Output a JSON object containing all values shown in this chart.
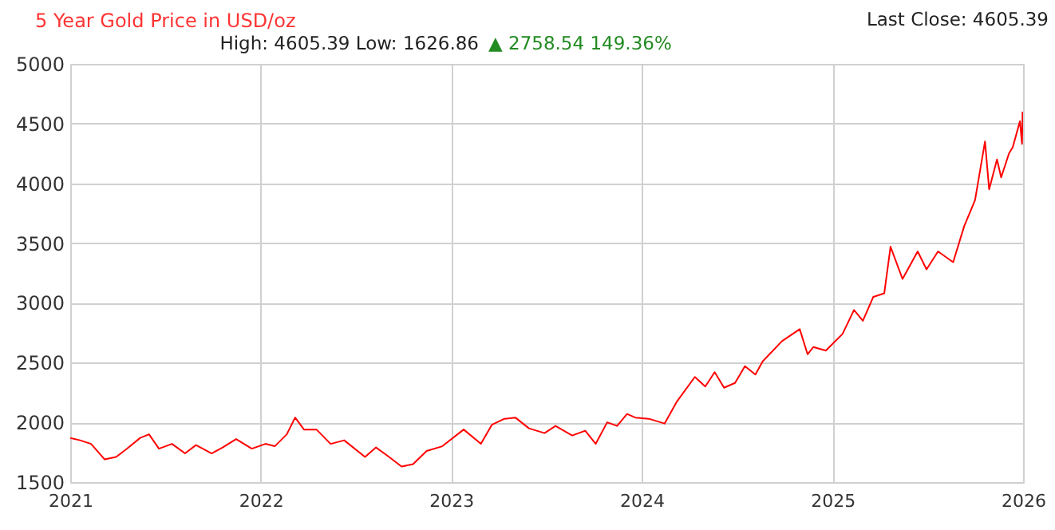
{
  "chart_data": {
    "type": "line",
    "title": "5 Year Gold Price in USD/oz",
    "subtitle": "High: 4605.39 Low: 1626.86",
    "annotations": [
      "▲ 2758.54 149.36%",
      "Last Close: 4605.39"
    ],
    "x": [
      "2021-01-01",
      "2021-01-20",
      "2021-02-10",
      "2021-03-08",
      "2021-03-30",
      "2021-04-20",
      "2021-05-15",
      "2021-06-01",
      "2021-06-20",
      "2021-07-15",
      "2021-08-09",
      "2021-08-30",
      "2021-09-29",
      "2021-10-20",
      "2021-11-15",
      "2021-12-15",
      "2022-01-10",
      "2022-01-28",
      "2022-02-20",
      "2022-03-08",
      "2022-03-25",
      "2022-04-18",
      "2022-05-15",
      "2022-06-10",
      "2022-07-20",
      "2022-08-10",
      "2022-09-01",
      "2022-09-28",
      "2022-10-20",
      "2022-11-15",
      "2022-12-15",
      "2023-01-25",
      "2023-02-27",
      "2023-03-20",
      "2023-04-13",
      "2023-05-04",
      "2023-05-30",
      "2023-06-29",
      "2023-07-20",
      "2023-08-21",
      "2023-09-15",
      "2023-10-05",
      "2023-10-27",
      "2023-11-15",
      "2023-12-04",
      "2023-12-20",
      "2024-01-15",
      "2024-02-14",
      "2024-03-08",
      "2024-04-12",
      "2024-05-02",
      "2024-05-20",
      "2024-06-07",
      "2024-06-28",
      "2024-07-17",
      "2024-08-06",
      "2024-08-20",
      "2024-09-26",
      "2024-10-30",
      "2024-11-14",
      "2024-11-25",
      "2024-12-19",
      "2025-01-20",
      "2025-02-11",
      "2025-02-28",
      "2025-03-20",
      "2025-04-10",
      "2025-04-22",
      "2025-05-15",
      "2025-06-13",
      "2025-06-30",
      "2025-07-22",
      "2025-08-20",
      "2025-09-10",
      "2025-10-01",
      "2025-10-20",
      "2025-10-28",
      "2025-11-12",
      "2025-11-20",
      "2025-12-05",
      "2025-12-12",
      "2025-12-26",
      "2025-12-30",
      "2025-12-31"
    ],
    "series": [
      {
        "color": "#ff0000",
        "values": [
          1870,
          1850,
          1820,
          1690,
          1710,
          1780,
          1870,
          1900,
          1780,
          1820,
          1740,
          1810,
          1740,
          1790,
          1860,
          1780,
          1820,
          1800,
          1900,
          2040,
          1940,
          1940,
          1820,
          1850,
          1710,
          1790,
          1720,
          1630,
          1650,
          1760,
          1800,
          1940,
          1820,
          1980,
          2030,
          2040,
          1950,
          1910,
          1970,
          1890,
          1930,
          1820,
          2000,
          1970,
          2070,
          2040,
          2030,
          1990,
          2170,
          2380,
          2300,
          2420,
          2290,
          2330,
          2470,
          2400,
          2510,
          2680,
          2780,
          2570,
          2630,
          2600,
          2740,
          2940,
          2850,
          3050,
          3080,
          3470,
          3200,
          3430,
          3280,
          3430,
          3340,
          3640,
          3860,
          4350,
          3950,
          4200,
          4050,
          4250,
          4300,
          4520,
          4330,
          4600
        ]
      }
    ],
    "xlim": [
      "2021-01-01",
      "2026-01-01"
    ],
    "xticks": [
      "2021",
      "2022",
      "2023",
      "2024",
      "2025",
      "2026"
    ],
    "ylim": [
      1500,
      5000
    ],
    "yticks": [
      1500,
      2000,
      2500,
      3000,
      3500,
      4000,
      4500,
      5000
    ],
    "grid": true
  }
}
